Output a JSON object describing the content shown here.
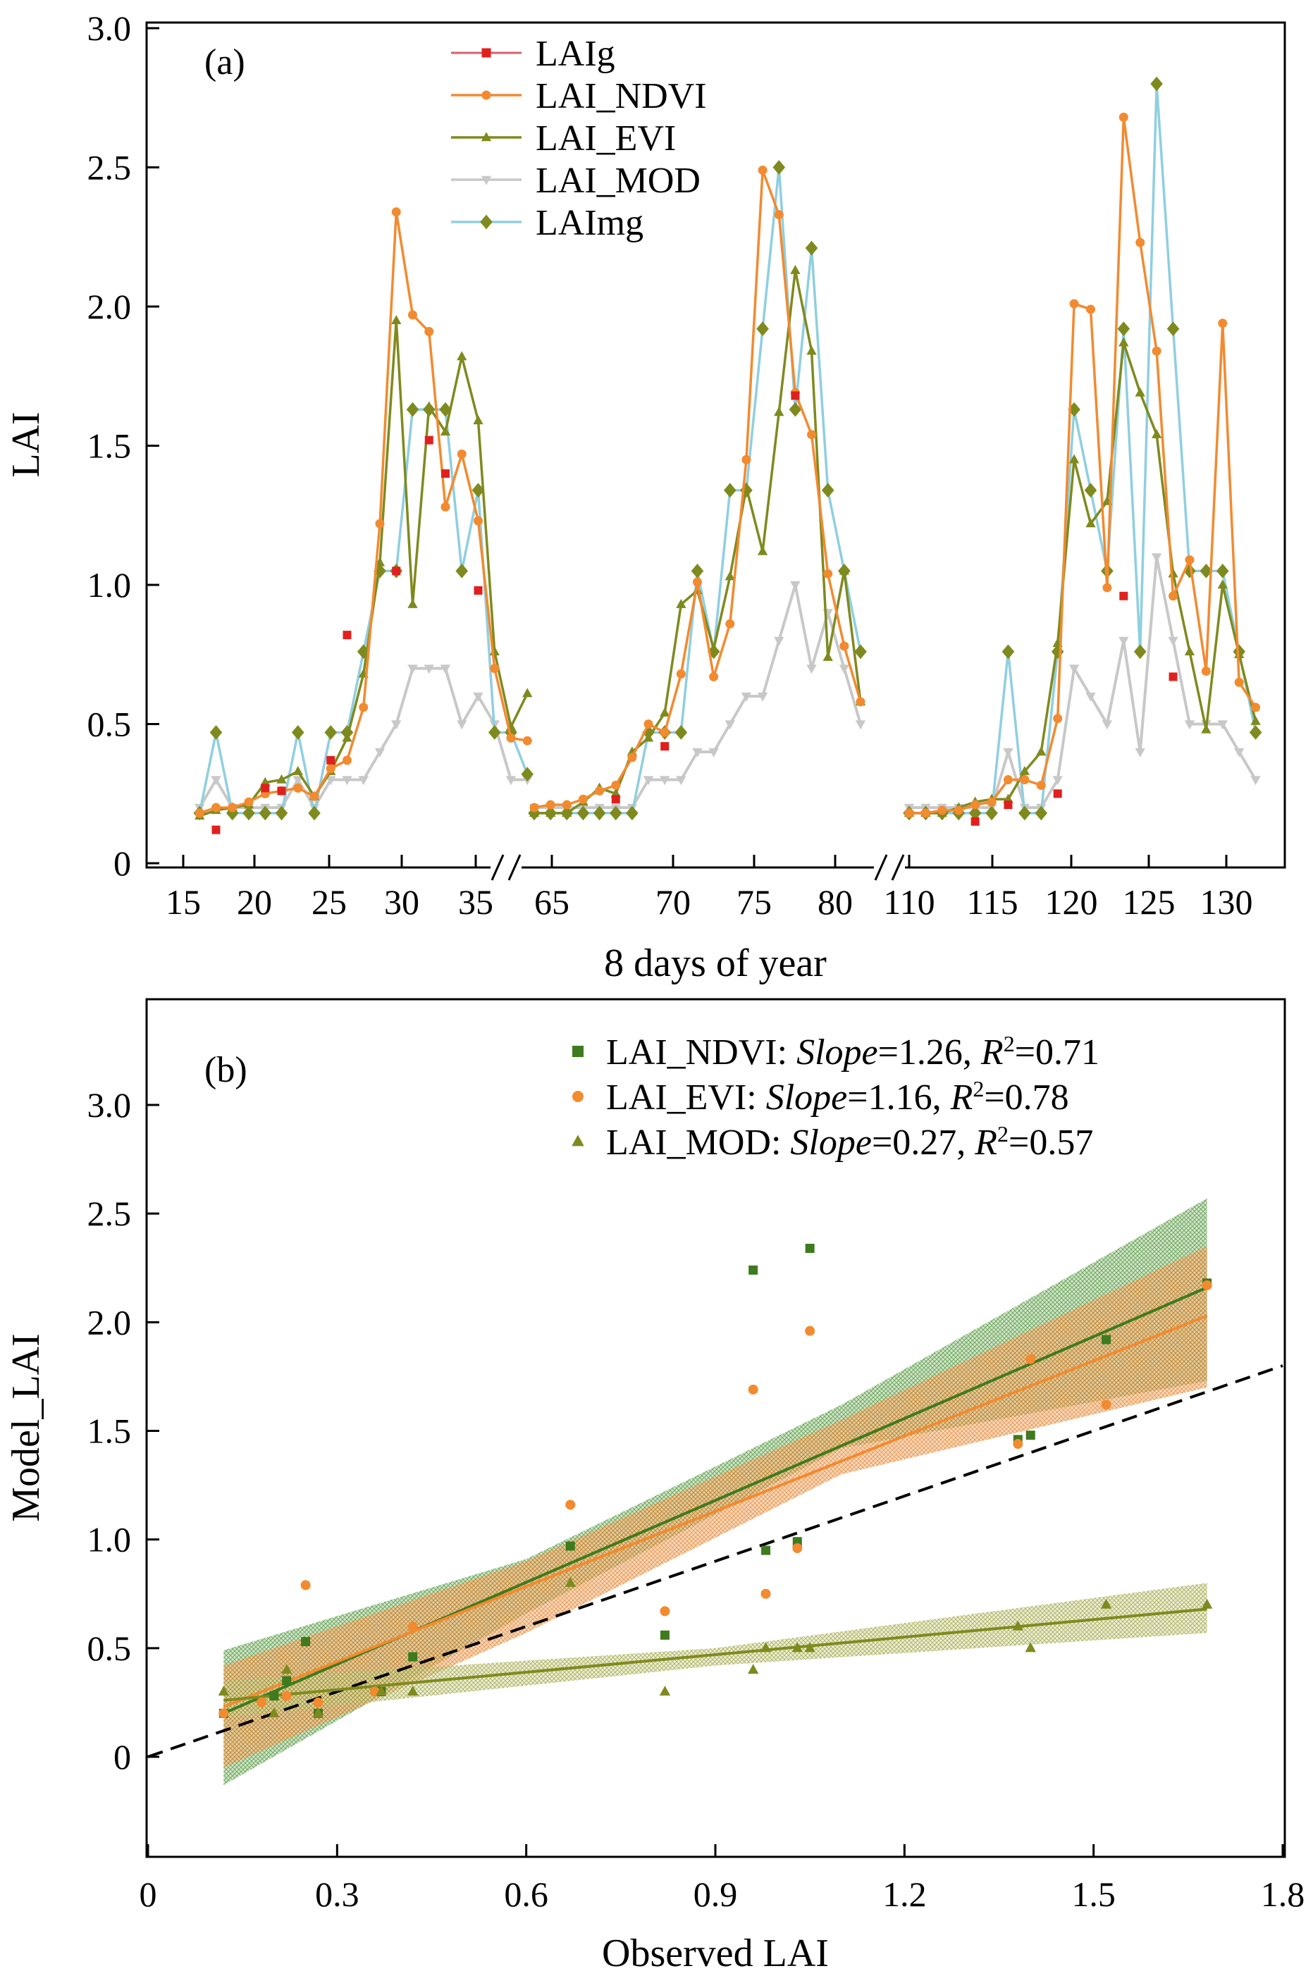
{
  "chart_data": [
    {
      "panel": "(a)",
      "type": "line",
      "xlabel": "8 days of year",
      "ylabel": "LAI",
      "ylim": [
        0,
        3.0
      ],
      "y_ticks": [
        "0",
        "0.5",
        "1.0",
        "1.5",
        "2.0",
        "2.5",
        "3.0"
      ],
      "x_ticks": [
        "15",
        "20",
        "25",
        "30",
        "35",
        "65",
        "70",
        "75",
        "80",
        "110",
        "115",
        "120",
        "125",
        "130"
      ],
      "x_axis_breaks": [
        [
          35,
          62
        ],
        [
          82,
          108
        ]
      ],
      "legend_position": "top-center",
      "series": [
        {
          "name": "LAIg",
          "color": "#e0201f",
          "marker": "square",
          "line": false,
          "x": [
            17,
            20,
            21,
            24,
            25,
            28,
            30,
            31,
            33,
            67,
            70,
            78,
            112,
            114,
            117,
            121,
            124
          ],
          "y": [
            0.12,
            0.27,
            0.26,
            0.37,
            0.82,
            1.05,
            1.52,
            1.4,
            0.98,
            0.23,
            0.42,
            1.68,
            0.15,
            0.21,
            0.25,
            0.96,
            0.67
          ]
        },
        {
          "name": "LAI_NDVI",
          "color": "#f28a30",
          "marker": "circle",
          "x": [
            16,
            17,
            18,
            19,
            20,
            21,
            22,
            23,
            24,
            25,
            26,
            27,
            28,
            29,
            30,
            31,
            32,
            33,
            34,
            35,
            36,
            62,
            63,
            64,
            65,
            66,
            67,
            68,
            69,
            70,
            71,
            72,
            73,
            74,
            75,
            76,
            77,
            78,
            79,
            80,
            81,
            82,
            108,
            109,
            110,
            111,
            112,
            113,
            114,
            115,
            116,
            117,
            118,
            119,
            120,
            121,
            122,
            123,
            124,
            125,
            126,
            127,
            128,
            129
          ],
          "y": [
            0.18,
            0.2,
            0.2,
            0.22,
            0.25,
            0.26,
            0.27,
            0.24,
            0.34,
            0.37,
            0.56,
            1.22,
            2.34,
            1.97,
            1.91,
            1.28,
            1.47,
            1.23,
            0.7,
            0.45,
            0.44,
            0.2,
            0.21,
            0.21,
            0.23,
            0.26,
            0.28,
            0.38,
            0.5,
            0.47,
            0.68,
            1.01,
            0.67,
            0.86,
            1.45,
            2.49,
            2.33,
            1.69,
            1.54,
            1.04,
            0.78,
            0.58,
            0.18,
            0.18,
            0.19,
            0.19,
            0.21,
            0.22,
            0.3,
            0.3,
            0.28,
            0.52,
            2.01,
            1.99,
            0.99,
            2.68,
            2.23,
            1.84,
            0.96,
            1.09,
            0.69,
            1.94,
            0.65,
            0.56
          ]
        },
        {
          "name": "LAI_EVI",
          "color": "#7f8a1e",
          "marker": "triangle",
          "x": [
            16,
            17,
            18,
            19,
            20,
            21,
            22,
            23,
            24,
            25,
            26,
            27,
            28,
            29,
            30,
            31,
            32,
            33,
            34,
            35,
            36,
            62,
            63,
            64,
            65,
            66,
            67,
            68,
            69,
            70,
            71,
            72,
            73,
            74,
            75,
            76,
            77,
            78,
            79,
            80,
            81,
            82,
            108,
            109,
            110,
            111,
            112,
            113,
            114,
            115,
            116,
            117,
            118,
            119,
            120,
            121,
            122,
            123,
            124,
            125,
            126,
            127,
            128,
            129
          ],
          "y": [
            0.17,
            0.19,
            0.2,
            0.21,
            0.29,
            0.3,
            0.33,
            0.24,
            0.33,
            0.45,
            0.68,
            1.08,
            1.95,
            0.93,
            1.64,
            1.55,
            1.82,
            1.59,
            0.76,
            0.49,
            0.61,
            0.18,
            0.18,
            0.18,
            0.22,
            0.27,
            0.25,
            0.4,
            0.45,
            0.54,
            0.93,
            0.98,
            0.77,
            1.03,
            1.35,
            1.12,
            1.62,
            2.13,
            1.84,
            0.74,
            1.05,
            0.58,
            0.18,
            0.18,
            0.18,
            0.2,
            0.22,
            0.23,
            0.23,
            0.33,
            0.4,
            0.79,
            1.45,
            1.22,
            1.3,
            1.87,
            1.69,
            1.54,
            1.04,
            0.76,
            0.48,
            1.0,
            0.75,
            0.51
          ]
        },
        {
          "name": "LAI_MOD",
          "color": "#c8c8c8",
          "marker": "triangle-down",
          "x": [
            16,
            17,
            18,
            19,
            20,
            21,
            22,
            23,
            24,
            25,
            26,
            27,
            28,
            29,
            30,
            31,
            32,
            33,
            34,
            35,
            36,
            62,
            63,
            64,
            65,
            66,
            67,
            68,
            69,
            70,
            71,
            72,
            73,
            74,
            75,
            76,
            77,
            78,
            79,
            80,
            81,
            82,
            108,
            109,
            110,
            111,
            112,
            113,
            114,
            115,
            116,
            117,
            118,
            119,
            120,
            121,
            122,
            123,
            124,
            125,
            126,
            127,
            128,
            129
          ],
          "y": [
            0.2,
            0.3,
            0.2,
            0.2,
            0.2,
            0.2,
            0.3,
            0.2,
            0.3,
            0.3,
            0.3,
            0.4,
            0.5,
            0.7,
            0.7,
            0.7,
            0.5,
            0.6,
            0.5,
            0.3,
            0.3,
            0.2,
            0.2,
            0.2,
            0.2,
            0.2,
            0.2,
            0.2,
            0.3,
            0.3,
            0.3,
            0.4,
            0.4,
            0.5,
            0.6,
            0.6,
            0.8,
            1.0,
            0.7,
            0.9,
            0.7,
            0.5,
            0.2,
            0.2,
            0.2,
            0.2,
            0.2,
            0.2,
            0.4,
            0.2,
            0.2,
            0.3,
            0.7,
            0.6,
            0.5,
            0.8,
            0.4,
            1.1,
            0.8,
            0.5,
            0.5,
            0.5,
            0.4,
            0.3
          ]
        },
        {
          "name": "LAImg",
          "color": "#8fcfe0",
          "marker": "diamond",
          "marker_color": "#7f8a1e",
          "x": [
            16,
            17,
            18,
            19,
            20,
            21,
            22,
            23,
            24,
            25,
            26,
            27,
            28,
            29,
            30,
            31,
            32,
            33,
            34,
            35,
            36,
            62,
            63,
            64,
            65,
            66,
            67,
            68,
            69,
            70,
            71,
            72,
            73,
            74,
            75,
            76,
            77,
            78,
            79,
            80,
            81,
            82,
            108,
            109,
            110,
            111,
            112,
            113,
            114,
            115,
            116,
            117,
            118,
            119,
            120,
            121,
            122,
            123,
            124,
            125,
            126,
            127,
            128,
            129
          ],
          "y": [
            0.18,
            0.47,
            0.18,
            0.18,
            0.18,
            0.18,
            0.47,
            0.18,
            0.47,
            0.47,
            0.76,
            1.05,
            1.05,
            1.63,
            1.63,
            1.63,
            1.05,
            1.34,
            0.47,
            0.47,
            0.32,
            0.18,
            0.18,
            0.18,
            0.18,
            0.18,
            0.18,
            0.18,
            0.47,
            0.47,
            0.47,
            1.05,
            0.76,
            1.34,
            1.34,
            1.92,
            2.5,
            1.63,
            2.21,
            1.34,
            1.05,
            0.76,
            0.18,
            0.18,
            0.18,
            0.18,
            0.18,
            0.18,
            0.76,
            0.18,
            0.18,
            0.76,
            1.63,
            1.34,
            1.05,
            1.92,
            0.76,
            2.8,
            1.92,
            1.05,
            1.05,
            1.05,
            0.76,
            0.47
          ]
        }
      ]
    },
    {
      "panel": "(b)",
      "type": "scatter",
      "xlabel": "Observed LAI",
      "ylabel": "Model_LAI",
      "xlim": [
        0,
        1.8
      ],
      "ylim": [
        -0.4,
        3.4
      ],
      "x_ticks": [
        "0",
        "0.3",
        "0.6",
        "0.9",
        "1.2",
        "1.5",
        "1.8"
      ],
      "y_ticks": [
        "0",
        "0.5",
        "1.0",
        "1.5",
        "2.0",
        "2.5",
        "3.0"
      ],
      "one_to_one_line": true,
      "legend_position": "top-right",
      "slope_label": "Slope",
      "r2_label": "R",
      "r2_sup": "2",
      "series": [
        {
          "name": "LAI_NDVI",
          "color": "#3e7a1e",
          "marker": "square",
          "slope": "1.26",
          "r2": "0.71",
          "fit_line": [
            [
              0.12,
              0.2
            ],
            [
              1.68,
              2.16
            ]
          ],
          "band_low": [
            [
              0.12,
              -0.13
            ],
            [
              0.6,
              0.66
            ],
            [
              1.1,
              1.42
            ],
            [
              1.68,
              1.73
            ]
          ],
          "band_high": [
            [
              0.12,
              0.49
            ],
            [
              0.6,
              0.91
            ],
            [
              1.1,
              1.62
            ],
            [
              1.68,
              2.57
            ]
          ],
          "x": [
            0.12,
            0.2,
            0.22,
            0.25,
            0.27,
            0.37,
            0.42,
            0.67,
            0.82,
            0.96,
            0.98,
            1.03,
            1.05,
            1.38,
            1.4,
            1.52,
            1.68
          ],
          "y": [
            0.2,
            0.28,
            0.35,
            0.53,
            0.2,
            0.3,
            0.46,
            0.97,
            0.56,
            2.24,
            0.95,
            0.99,
            2.34,
            1.46,
            1.48,
            1.92,
            2.18
          ]
        },
        {
          "name": "LAI_EVI",
          "color": "#f28a30",
          "marker": "circle",
          "slope": "1.16",
          "r2": "0.78",
          "fit_line": [
            [
              0.12,
              0.23
            ],
            [
              1.68,
              2.03
            ]
          ],
          "band_low": [
            [
              0.12,
              -0.05
            ],
            [
              0.6,
              0.57
            ],
            [
              1.1,
              1.3
            ],
            [
              1.68,
              1.7
            ]
          ],
          "band_high": [
            [
              0.12,
              0.42
            ],
            [
              0.6,
              0.9
            ],
            [
              1.1,
              1.55
            ],
            [
              1.68,
              2.35
            ]
          ],
          "x": [
            0.12,
            0.18,
            0.22,
            0.25,
            0.27,
            0.36,
            0.42,
            0.67,
            0.82,
            0.96,
            0.98,
            1.03,
            1.05,
            1.38,
            1.4,
            1.52,
            1.68
          ],
          "y": [
            0.2,
            0.25,
            0.28,
            0.79,
            0.25,
            0.3,
            0.6,
            1.16,
            0.67,
            1.69,
            0.75,
            0.96,
            1.96,
            1.44,
            1.83,
            1.62,
            2.17
          ]
        },
        {
          "name": "LAI_MOD",
          "color": "#7f8a1e",
          "marker": "triangle",
          "slope": "0.27",
          "r2": "0.57",
          "fit_line": [
            [
              0.12,
              0.26
            ],
            [
              1.68,
              0.68
            ]
          ],
          "band_low": [
            [
              0.12,
              0.18
            ],
            [
              0.9,
              0.42
            ],
            [
              1.68,
              0.57
            ]
          ],
          "band_high": [
            [
              0.12,
              0.35
            ],
            [
              0.9,
              0.5
            ],
            [
              1.68,
              0.8
            ]
          ],
          "x": [
            0.12,
            0.2,
            0.22,
            0.27,
            0.37,
            0.42,
            0.67,
            0.82,
            0.96,
            0.98,
            1.03,
            1.05,
            1.38,
            1.4,
            1.52,
            1.68
          ],
          "y": [
            0.3,
            0.2,
            0.4,
            0.2,
            0.3,
            0.3,
            0.8,
            0.3,
            0.4,
            0.5,
            0.5,
            0.5,
            0.6,
            0.5,
            0.7,
            0.7
          ]
        }
      ]
    }
  ]
}
